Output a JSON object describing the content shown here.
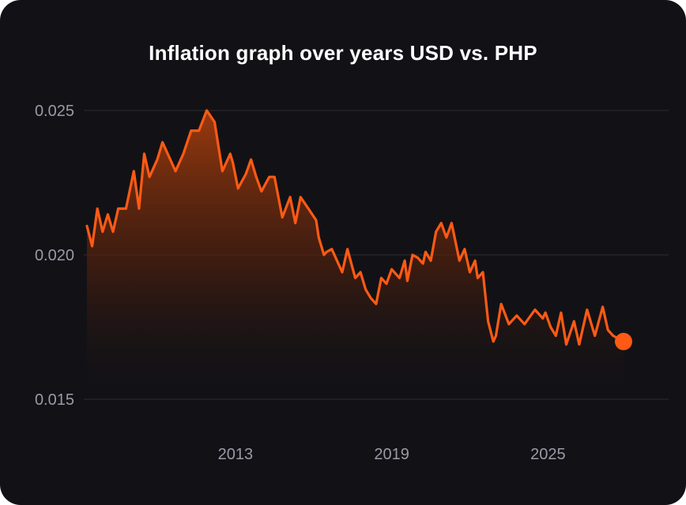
{
  "chart_data": {
    "type": "area",
    "title": "Inflation graph over years USD vs. PHP",
    "xlabel": "",
    "ylabel": "",
    "ylim": [
      0.015,
      0.025
    ],
    "xlim": [
      2007.3,
      2029.6
    ],
    "y_ticks": [
      "0.025",
      "0.020",
      "0.015"
    ],
    "y_tick_values": [
      0.025,
      0.02,
      0.015
    ],
    "x_ticks": [
      "2013",
      "2019",
      "2025"
    ],
    "x_tick_values": [
      2013,
      2019,
      2025
    ],
    "grid": true,
    "series": [
      {
        "name": "USD vs. PHP",
        "color": "#ff5a14",
        "x": [
          2007.3,
          2007.5,
          2007.7,
          2007.9,
          2008.1,
          2008.3,
          2008.5,
          2008.8,
          2009.1,
          2009.3,
          2009.5,
          2009.7,
          2010.0,
          2010.2,
          2010.4,
          2010.7,
          2011.0,
          2011.3,
          2011.6,
          2011.9,
          2012.2,
          2012.5,
          2012.8,
          2012.9,
          2013.1,
          2013.4,
          2013.6,
          2013.8,
          2014.0,
          2014.3,
          2014.5,
          2014.8,
          2015.1,
          2015.3,
          2015.5,
          2015.8,
          2016.1,
          2016.2,
          2016.4,
          2016.5,
          2016.7,
          2016.9,
          2017.1,
          2017.3,
          2017.6,
          2017.8,
          2018.0,
          2018.2,
          2018.4,
          2018.6,
          2018.8,
          2019.0,
          2019.3,
          2019.5,
          2019.6,
          2019.8,
          2020.0,
          2020.2,
          2020.3,
          2020.5,
          2020.7,
          2020.9,
          2021.1,
          2021.3,
          2021.6,
          2021.8,
          2022.0,
          2022.2,
          2022.3,
          2022.5,
          2022.7,
          2022.9,
          2023.0,
          2023.2,
          2023.5,
          2023.8,
          2024.1,
          2024.5,
          2024.8,
          2024.9,
          2025.1,
          2025.3,
          2025.5,
          2025.7,
          2026.0,
          2026.2,
          2026.5,
          2026.8,
          2027.1,
          2027.3,
          2027.5,
          2027.7,
          2027.8,
          2027.9
        ],
        "values": [
          0.021,
          0.0203,
          0.0216,
          0.0208,
          0.0214,
          0.0208,
          0.0216,
          0.0216,
          0.0229,
          0.0216,
          0.0235,
          0.0227,
          0.0233,
          0.0239,
          0.0235,
          0.0229,
          0.0235,
          0.0243,
          0.0243,
          0.025,
          0.0246,
          0.0229,
          0.0235,
          0.0232,
          0.0223,
          0.0228,
          0.0233,
          0.0227,
          0.0222,
          0.0227,
          0.0227,
          0.0213,
          0.022,
          0.0211,
          0.022,
          0.0216,
          0.0212,
          0.0206,
          0.02,
          0.0201,
          0.0202,
          0.0198,
          0.0194,
          0.0202,
          0.0192,
          0.0194,
          0.0188,
          0.0185,
          0.0183,
          0.0192,
          0.019,
          0.0195,
          0.0192,
          0.0198,
          0.0191,
          0.02,
          0.0199,
          0.0197,
          0.0201,
          0.0198,
          0.0208,
          0.0211,
          0.0206,
          0.0211,
          0.0198,
          0.0202,
          0.0194,
          0.0198,
          0.0192,
          0.0194,
          0.0177,
          0.017,
          0.0172,
          0.0183,
          0.0176,
          0.0179,
          0.0176,
          0.0181,
          0.0178,
          0.018,
          0.0175,
          0.0172,
          0.018,
          0.0169,
          0.0177,
          0.0169,
          0.0181,
          0.0172,
          0.0182,
          0.0174,
          0.0172,
          0.0171,
          0.0171,
          0.017
        ]
      }
    ]
  }
}
